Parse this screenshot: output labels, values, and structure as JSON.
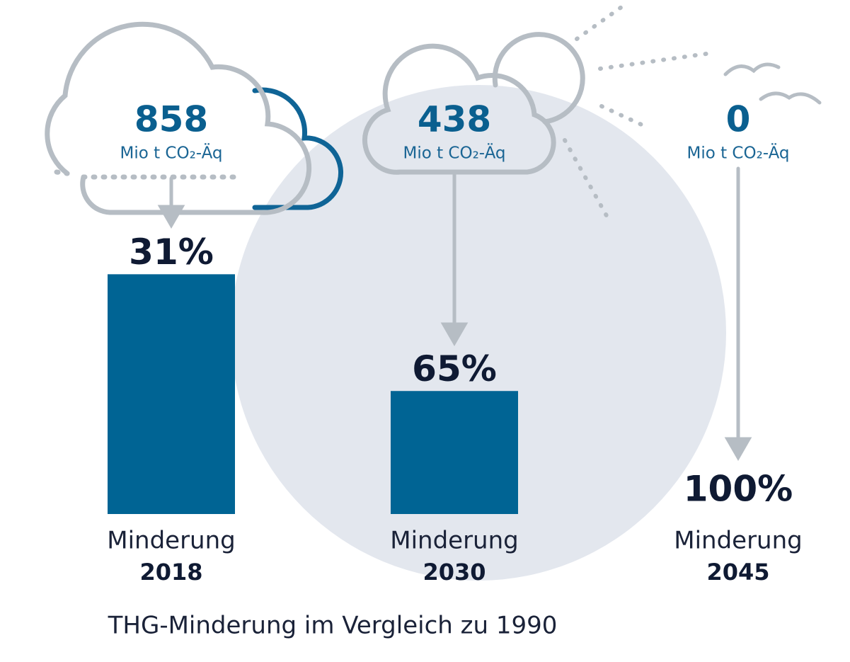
{
  "chart_data": {
    "type": "bar",
    "caption": "THG-Minderung im Vergleich zu 1990",
    "bar_label": "Minderung",
    "categories": [
      "2018",
      "2030",
      "2045"
    ],
    "values": [
      31,
      65,
      100
    ],
    "value_labels": [
      "31%",
      "65%",
      "100%"
    ],
    "color": "#006494",
    "ylim": [
      0,
      100
    ],
    "emissions": {
      "values": [
        858,
        438,
        0
      ],
      "unit": "Mio t CO₂-Äq"
    }
  }
}
